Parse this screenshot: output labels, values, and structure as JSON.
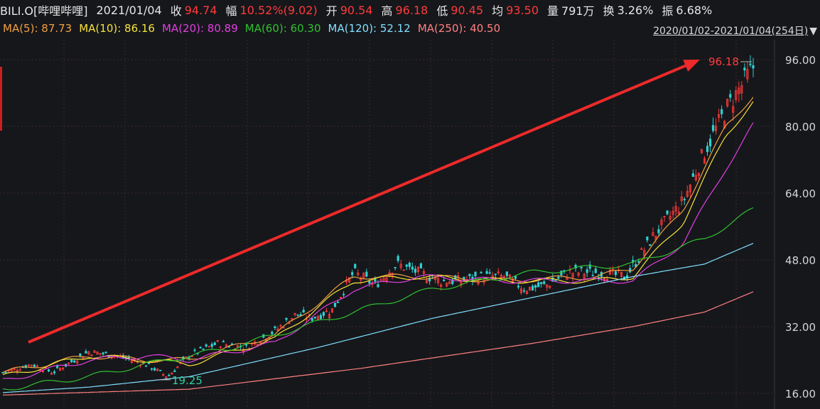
{
  "header": {
    "symbol": "BILI.O[哔哩哔哩]",
    "date": "2021/01/04",
    "close_label": "收",
    "close": "94.74",
    "change_label": "幅",
    "change": "10.52%(9.02)",
    "open_label": "开",
    "open": "90.54",
    "high_label": "高",
    "high": "96.18",
    "low_label": "低",
    "low": "90.45",
    "avg_label": "均",
    "avg": "93.50",
    "volume_label": "量",
    "volume": "791万",
    "turnover_label": "换",
    "turnover": "3.26%",
    "amplitude_label": "振",
    "amplitude": "6.68%"
  },
  "ma_legend": [
    {
      "label": "MA(5): 87.73",
      "color": "#f0a040"
    },
    {
      "label": "MA(10): 86.16",
      "color": "#f5e23a"
    },
    {
      "label": "MA(20): 80.89",
      "color": "#e040e0"
    },
    {
      "label": "MA(60): 60.30",
      "color": "#30c030"
    },
    {
      "label": "MA(120): 52.12",
      "color": "#80e0ff"
    },
    {
      "label": "MA(250): 40.50",
      "color": "#ff8080"
    }
  ],
  "range_label": "2020/01/02-2021/01/04(254日)",
  "range_arrow": "▼",
  "colors": {
    "up": "#ff3a3a",
    "down": "#30d0d0",
    "arrow": "#ee2a2a",
    "grid": "#3a2a2a",
    "axis_text": "#d6d6d6"
  },
  "chart_data": {
    "type": "candlestick",
    "ylim": [
      16,
      96
    ],
    "y_ticks": [
      "96.00",
      "80.00",
      "64.00",
      "48.00",
      "32.00",
      "16.00"
    ],
    "y_tick_values": [
      96,
      80,
      64,
      48,
      32,
      16
    ],
    "x_points": 254,
    "close_anchors": [
      [
        0,
        21
      ],
      [
        20,
        23
      ],
      [
        35,
        21
      ],
      [
        60,
        26
      ],
      [
        80,
        25
      ],
      [
        100,
        23
      ],
      [
        115,
        20
      ],
      [
        130,
        25
      ],
      [
        150,
        28
      ],
      [
        170,
        27
      ],
      [
        190,
        31
      ],
      [
        205,
        35
      ],
      [
        215,
        34
      ],
      [
        230,
        36
      ],
      [
        245,
        45
      ],
      [
        260,
        42
      ],
      [
        275,
        47
      ],
      [
        290,
        45
      ],
      [
        305,
        43
      ],
      [
        320,
        43
      ],
      [
        335,
        44
      ],
      [
        350,
        44
      ],
      [
        365,
        41
      ],
      [
        380,
        42
      ],
      [
        395,
        45
      ],
      [
        415,
        45
      ],
      [
        435,
        44
      ],
      [
        455,
        54
      ],
      [
        475,
        62
      ],
      [
        490,
        74
      ],
      [
        505,
        84
      ],
      [
        520,
        92
      ],
      [
        525,
        94.74
      ]
    ],
    "max_label": "96.18",
    "min_label": "19.25",
    "ma_anchors": {
      "MA(5)": [
        [
          0,
          21
        ],
        [
          60,
          25
        ],
        [
          100,
          24
        ],
        [
          130,
          24
        ],
        [
          190,
          30
        ],
        [
          245,
          44
        ],
        [
          290,
          44
        ],
        [
          350,
          43
        ],
        [
          415,
          44
        ],
        [
          440,
          46
        ],
        [
          475,
          60
        ],
        [
          505,
          80
        ],
        [
          525,
          87.73
        ]
      ],
      "MA(10)": [
        [
          0,
          20
        ],
        [
          60,
          25
        ],
        [
          100,
          24
        ],
        [
          130,
          23
        ],
        [
          190,
          29
        ],
        [
          245,
          43
        ],
        [
          290,
          44
        ],
        [
          350,
          43
        ],
        [
          415,
          43
        ],
        [
          440,
          44
        ],
        [
          475,
          57
        ],
        [
          505,
          78
        ],
        [
          525,
          86.16
        ]
      ],
      "MA(20)": [
        [
          0,
          19
        ],
        [
          60,
          24
        ],
        [
          100,
          25
        ],
        [
          130,
          24
        ],
        [
          190,
          28
        ],
        [
          245,
          41
        ],
        [
          290,
          44
        ],
        [
          350,
          43
        ],
        [
          415,
          43
        ],
        [
          440,
          43
        ],
        [
          475,
          52
        ],
        [
          505,
          70
        ],
        [
          525,
          80.89
        ]
      ],
      "MA(60)": [
        [
          0,
          17
        ],
        [
          60,
          20
        ],
        [
          100,
          23
        ],
        [
          160,
          27
        ],
        [
          220,
          33
        ],
        [
          300,
          41
        ],
        [
          370,
          45
        ],
        [
          440,
          47
        ],
        [
          490,
          53
        ],
        [
          525,
          60.3
        ]
      ],
      "MA(120)": [
        [
          0,
          16.2
        ],
        [
          60,
          17.5
        ],
        [
          130,
          20
        ],
        [
          220,
          27
        ],
        [
          300,
          34
        ],
        [
          370,
          39
        ],
        [
          440,
          44
        ],
        [
          490,
          47
        ],
        [
          525,
          52.12
        ]
      ],
      "MA(250)": [
        [
          0,
          15.6
        ],
        [
          130,
          17
        ],
        [
          250,
          22
        ],
        [
          370,
          28
        ],
        [
          440,
          32
        ],
        [
          490,
          35.5
        ],
        [
          525,
          40.5
        ]
      ]
    }
  }
}
